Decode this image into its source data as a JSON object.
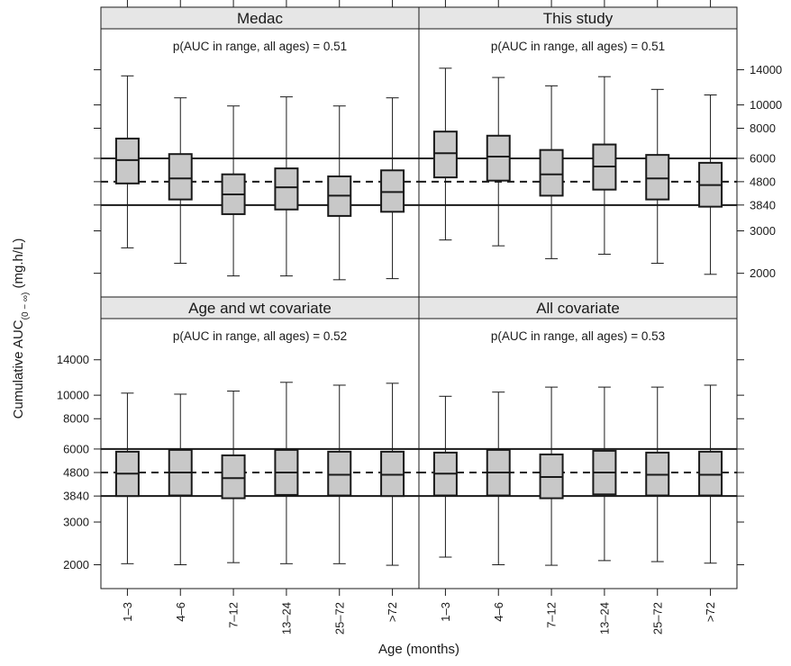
{
  "chart_data": {
    "type": "boxplot",
    "y_scale": "log",
    "ylim": [
      1650,
      20000
    ],
    "xlabel": "Age (months)",
    "ylabel": {
      "text": "Cumulative AUC",
      "subscript": "(0 − ∞)",
      "unit": " (mg.h/L)"
    },
    "categories": [
      "1–3",
      "4–6",
      "7–12",
      "13–24",
      "25–72",
      ">72"
    ],
    "y_ticks": [
      {
        "label": "2000",
        "value": 2000
      },
      {
        "label": "3000",
        "value": 3000
      },
      {
        "label": "3840",
        "value": 3840
      },
      {
        "label": "4800",
        "value": 4800
      },
      {
        "label": "6000",
        "value": 6000
      },
      {
        "label": "8000",
        "value": 8000
      },
      {
        "label": "10000",
        "value": 10000
      },
      {
        "label": "14000",
        "value": 14000
      }
    ],
    "reference_lines": {
      "solid": [
        3840,
        6000
      ],
      "dashed": [
        4800
      ]
    },
    "panels": [
      {
        "title": "Medac",
        "annotation": "p(AUC in range, all ages) = 0.51",
        "boxes": [
          {
            "whisker_low": 2550,
            "q1": 4720,
            "median": 5900,
            "q3": 7250,
            "whisker_high": 13200
          },
          {
            "whisker_low": 2200,
            "q1": 4050,
            "median": 4950,
            "q3": 6250,
            "whisker_high": 10700
          },
          {
            "whisker_low": 1950,
            "q1": 3520,
            "median": 4250,
            "q3": 5150,
            "whisker_high": 9900
          },
          {
            "whisker_low": 1950,
            "q1": 3680,
            "median": 4550,
            "q3": 5450,
            "whisker_high": 10800
          },
          {
            "whisker_low": 1880,
            "q1": 3460,
            "median": 4200,
            "q3": 5050,
            "whisker_high": 9900
          },
          {
            "whisker_low": 1900,
            "q1": 3600,
            "median": 4350,
            "q3": 5350,
            "whisker_high": 10700
          }
        ]
      },
      {
        "title": "This study",
        "annotation": "p(AUC in range, all ages) = 0.51",
        "boxes": [
          {
            "whisker_low": 2750,
            "q1": 5000,
            "median": 6300,
            "q3": 7750,
            "whisker_high": 14200
          },
          {
            "whisker_low": 2600,
            "q1": 4850,
            "median": 6100,
            "q3": 7450,
            "whisker_high": 13000
          },
          {
            "whisker_low": 2300,
            "q1": 4200,
            "median": 5150,
            "q3": 6500,
            "whisker_high": 12000
          },
          {
            "whisker_low": 2400,
            "q1": 4450,
            "median": 5550,
            "q3": 6850,
            "whisker_high": 13100
          },
          {
            "whisker_low": 2200,
            "q1": 4050,
            "median": 4950,
            "q3": 6200,
            "whisker_high": 11600
          },
          {
            "whisker_low": 1980,
            "q1": 3780,
            "median": 4650,
            "q3": 5750,
            "whisker_high": 11000
          }
        ]
      },
      {
        "title": "Age and wt covariate",
        "annotation": "p(AUC in range, all ages) = 0.52",
        "boxes": [
          {
            "whisker_low": 2020,
            "q1": 3840,
            "median": 4750,
            "q3": 5850,
            "whisker_high": 10200
          },
          {
            "whisker_low": 2000,
            "q1": 3860,
            "median": 4800,
            "q3": 5950,
            "whisker_high": 10100
          },
          {
            "whisker_low": 2040,
            "q1": 3760,
            "median": 4550,
            "q3": 5650,
            "whisker_high": 10400
          },
          {
            "whisker_low": 2020,
            "q1": 3880,
            "median": 4800,
            "q3": 5950,
            "whisker_high": 11300
          },
          {
            "whisker_low": 2020,
            "q1": 3860,
            "median": 4700,
            "q3": 5850,
            "whisker_high": 11000
          },
          {
            "whisker_low": 1990,
            "q1": 3840,
            "median": 4700,
            "q3": 5850,
            "whisker_high": 11200
          }
        ]
      },
      {
        "title": "All covariate",
        "annotation": "p(AUC in range, all ages) = 0.53",
        "boxes": [
          {
            "whisker_low": 2150,
            "q1": 3860,
            "median": 4750,
            "q3": 5800,
            "whisker_high": 9900
          },
          {
            "whisker_low": 2000,
            "q1": 3860,
            "median": 4800,
            "q3": 5950,
            "whisker_high": 10300
          },
          {
            "whisker_low": 1990,
            "q1": 3760,
            "median": 4600,
            "q3": 5700,
            "whisker_high": 10800
          },
          {
            "whisker_low": 2080,
            "q1": 3900,
            "median": 4800,
            "q3": 5900,
            "whisker_high": 10800
          },
          {
            "whisker_low": 2060,
            "q1": 3860,
            "median": 4700,
            "q3": 5800,
            "whisker_high": 10800
          },
          {
            "whisker_low": 2030,
            "q1": 3860,
            "median": 4700,
            "q3": 5850,
            "whisker_high": 11000
          }
        ]
      }
    ],
    "colors": {
      "box_fill": "#c8c8c8",
      "strip_fill": "#e6e6e6",
      "line": "#1a1a1a"
    }
  }
}
